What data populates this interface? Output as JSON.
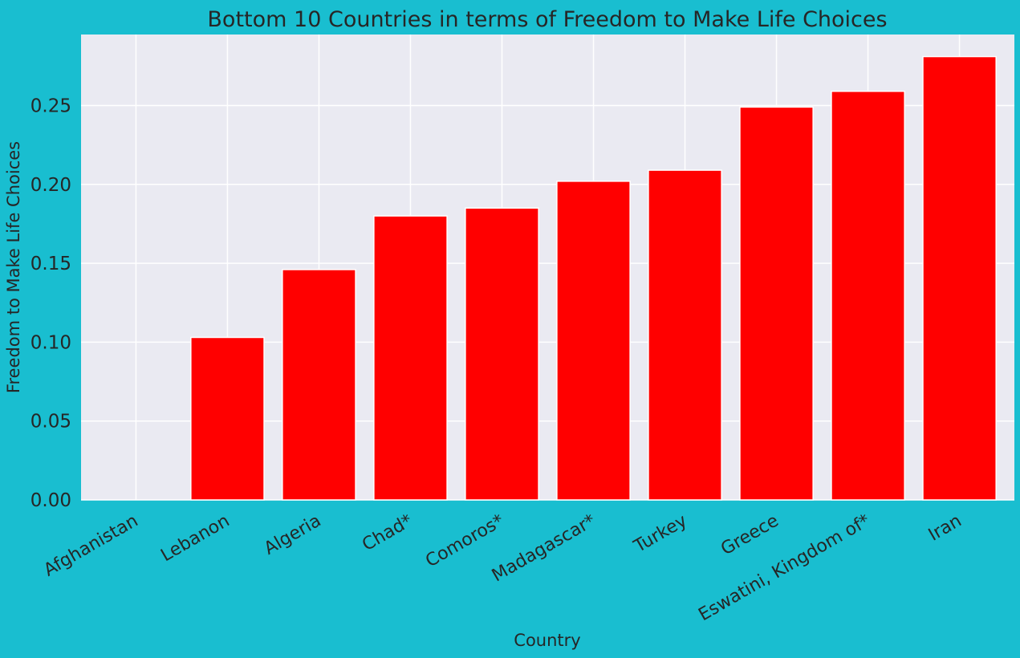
{
  "chart_data": {
    "type": "bar",
    "title": "Bottom 10 Countries in terms of Freedom to Make Life Choices",
    "xlabel": "Country",
    "ylabel": "Freedom to Make Life Choices",
    "categories": [
      "Afghanistan",
      "Lebanon",
      "Algeria",
      "Chad*",
      "Comoros*",
      "Madagascar*",
      "Turkey",
      "Greece",
      "Eswatini, Kingdom of*",
      "Iran"
    ],
    "values": [
      0.0,
      0.103,
      0.146,
      0.18,
      0.185,
      0.202,
      0.209,
      0.249,
      0.259,
      0.281
    ],
    "ylim": [
      0,
      0.295
    ],
    "yticks": [
      "0.00",
      "0.05",
      "0.10",
      "0.15",
      "0.20",
      "0.25"
    ],
    "grid": true,
    "legend": "none",
    "colors": {
      "figure_background": "#19bed0",
      "plot_background": "#eaeaf2",
      "grid": "#ffffff",
      "bar": "#ff0000",
      "text": "#262626"
    }
  }
}
